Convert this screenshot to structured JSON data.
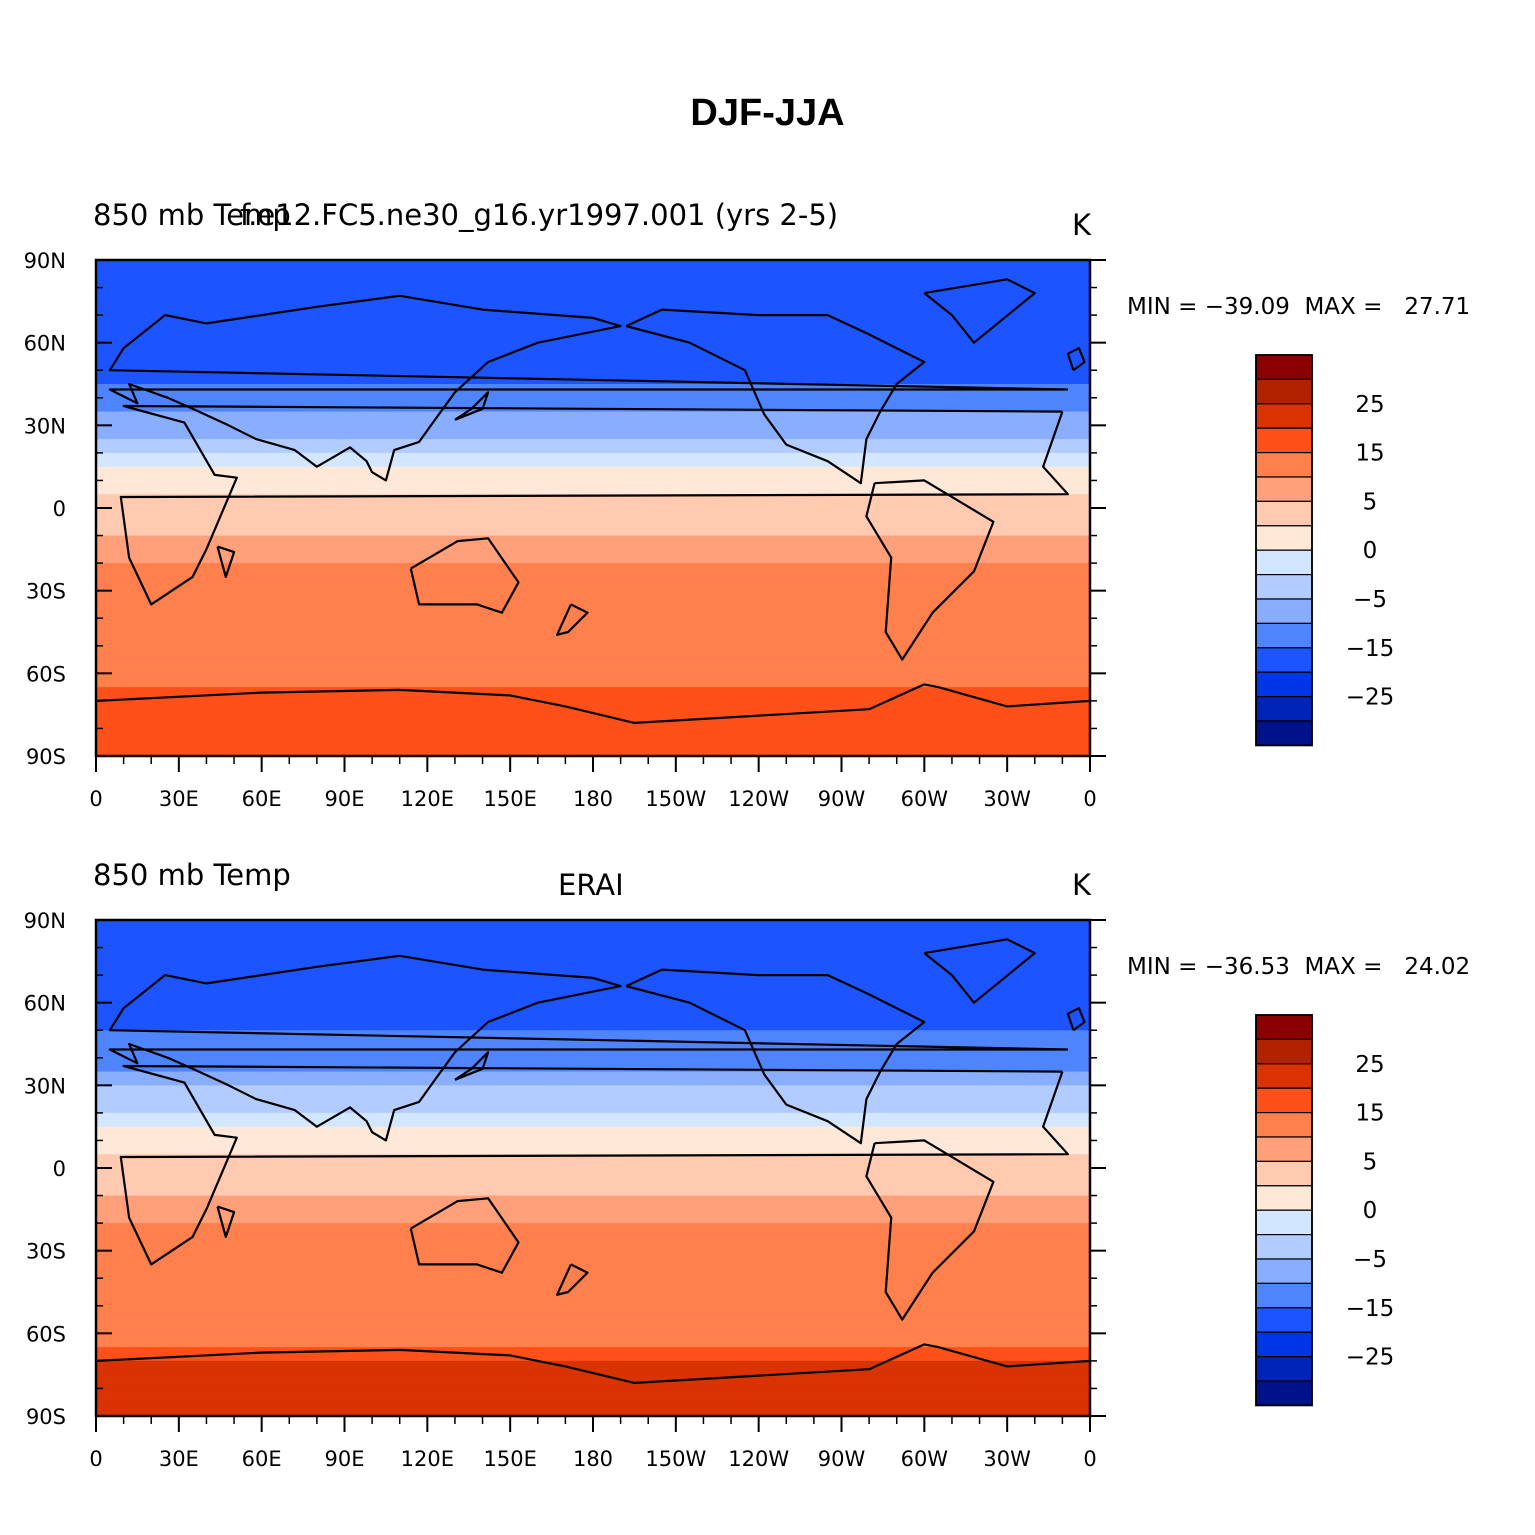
{
  "figure": {
    "title": "DJF-JJA"
  },
  "panels": [
    {
      "left_label": "850 mb Temp",
      "overlap_label": "f.e12.FC5.ne30_g16.yr1997.001 (yrs 2-5)",
      "center_label": "",
      "units": "K",
      "min_max": "MIN = −39.09  MAX =   27.71",
      "min": -39.09,
      "max": 27.71
    },
    {
      "left_label": "850 mb Temp",
      "overlap_label": "",
      "center_label": "ERAI",
      "units": "K",
      "min_max": "MIN = −36.53  MAX =   24.02",
      "min": -36.53,
      "max": 24.02
    }
  ],
  "axes": {
    "lat_ticks": [
      "90N",
      "60N",
      "30N",
      "0",
      "30S",
      "60S",
      "90S"
    ],
    "lon_ticks": [
      "0",
      "30E",
      "60E",
      "90E",
      "120E",
      "150E",
      "180",
      "150W",
      "120W",
      "90W",
      "60W",
      "30W",
      "0"
    ]
  },
  "colorbar": {
    "labels": [
      "25",
      "15",
      "5",
      "0",
      "−5",
      "−15",
      "−25"
    ],
    "colors": [
      "#8b0000",
      "#b22200",
      "#d83300",
      "#ff5019",
      "#ff7f4d",
      "#ffa07a",
      "#ffcab0",
      "#ffe8d8",
      "#d2e6ff",
      "#b2ccff",
      "#8aaeff",
      "#4f84ff",
      "#1c55ff",
      "#0035e6",
      "#0024b8",
      "#00128a"
    ]
  },
  "chart_data": [
    {
      "type": "heatmap",
      "title": "DJF-JJA",
      "variable": "850 mb Temp",
      "case": "f.e12.FC5.ne30_g16.yr1997.001 (yrs 2-5)",
      "units": "K",
      "min": -39.09,
      "max": 27.71,
      "x_range": [
        0,
        360
      ],
      "y_range": [
        -90,
        90
      ],
      "contour_levels": [
        -35,
        -30,
        -25,
        -20,
        -15,
        -10,
        -5,
        -2.5,
        0,
        2.5,
        5,
        10,
        15,
        20,
        25,
        30
      ],
      "zonal_pattern": [
        {
          "lat": 75,
          "value": -22
        },
        {
          "lat": 60,
          "value": -22
        },
        {
          "lat": 45,
          "value": -20
        },
        {
          "lat": 30,
          "value": -12
        },
        {
          "lat": 15,
          "value": -3
        },
        {
          "lat": 0,
          "value": 1
        },
        {
          "lat": -15,
          "value": 4
        },
        {
          "lat": -30,
          "value": 7
        },
        {
          "lat": -45,
          "value": 5
        },
        {
          "lat": -60,
          "value": 6
        },
        {
          "lat": -75,
          "value": 15
        }
      ]
    },
    {
      "type": "heatmap",
      "title": "DJF-JJA",
      "variable": "850 mb Temp",
      "case": "ERAI",
      "units": "K",
      "min": -36.53,
      "max": 24.02,
      "x_range": [
        0,
        360
      ],
      "y_range": [
        -90,
        90
      ],
      "contour_levels": [
        -35,
        -30,
        -25,
        -20,
        -15,
        -10,
        -5,
        -2.5,
        0,
        2.5,
        5,
        10,
        15,
        20,
        25,
        30
      ],
      "zonal_pattern": [
        {
          "lat": 75,
          "value": -20
        },
        {
          "lat": 60,
          "value": -21
        },
        {
          "lat": 45,
          "value": -19
        },
        {
          "lat": 30,
          "value": -11
        },
        {
          "lat": 15,
          "value": -3
        },
        {
          "lat": 0,
          "value": 1
        },
        {
          "lat": -15,
          "value": 4
        },
        {
          "lat": -30,
          "value": 7
        },
        {
          "lat": -45,
          "value": 5
        },
        {
          "lat": -60,
          "value": 7
        },
        {
          "lat": -75,
          "value": 18
        }
      ]
    }
  ]
}
